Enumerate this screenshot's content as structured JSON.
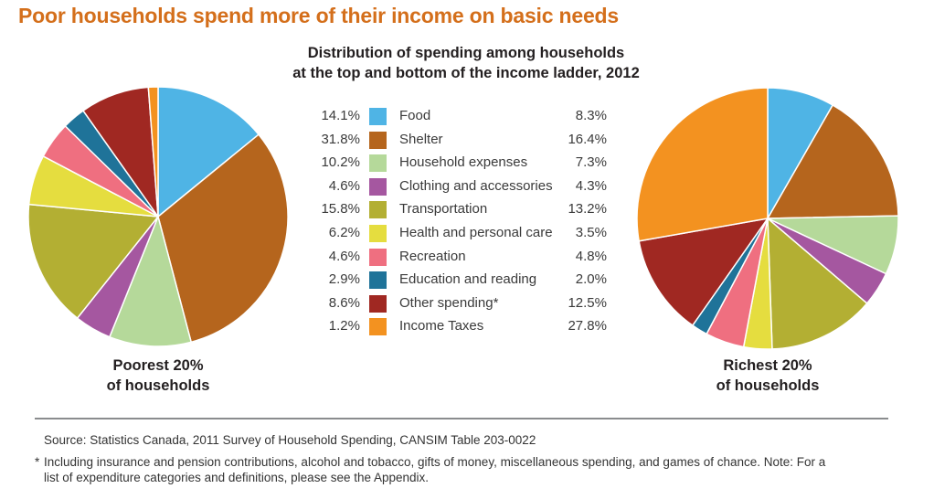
{
  "header": {
    "title": "Poor households spend more of their income on basic needs"
  },
  "chart_data": {
    "type": "pie",
    "title": "Distribution of spending among households",
    "subtitle": "at the top and bottom of the income ladder, 2012",
    "start_angle": "12 o'clock",
    "direction": "clockwise",
    "legend_placement": "center",
    "categories": [
      "Food",
      "Shelter",
      "Household expenses",
      "Clothing and accessories",
      "Transportation",
      "Health and personal care",
      "Recreation",
      "Education and reading",
      "Other spending*",
      "Income Taxes"
    ],
    "colors": [
      "#4FB4E5",
      "#B5651D",
      "#B5D99A",
      "#A557A0",
      "#B3AF33",
      "#E5DD3F",
      "#EF6F80",
      "#1F7399",
      "#A02822",
      "#F39220"
    ],
    "series": [
      {
        "name": "Poorest 20%",
        "label_line1": "Poorest 20%",
        "label_line2": "of households",
        "values": [
          14.1,
          31.8,
          10.2,
          4.6,
          15.8,
          6.2,
          4.6,
          2.9,
          8.6,
          1.2
        ],
        "display": [
          "14.1%",
          "31.8%",
          "10.2%",
          "4.6%",
          "15.8%",
          "6.2%",
          "4.6%",
          "2.9%",
          "8.6%",
          "1.2%"
        ]
      },
      {
        "name": "Richest 20%",
        "label_line1": "Richest 20%",
        "label_line2": "of households",
        "values": [
          8.3,
          16.4,
          7.3,
          4.3,
          13.2,
          3.5,
          4.8,
          2.0,
          12.5,
          27.8
        ],
        "display": [
          "8.3%",
          "16.4%",
          "7.3%",
          "4.3%",
          "13.2%",
          "3.5%",
          "4.8%",
          "2.0%",
          "12.5%",
          "27.8%"
        ]
      }
    ]
  },
  "footer": {
    "source": "Source: Statistics Canada, 2011 Survey of Household Spending, CANSIM Table 203-0022",
    "note_marker": "*",
    "note": "Including insurance and pension contributions, alcohol and tobacco, gifts of money, miscellaneous spending, and games of chance. Note: For a list of expenditure categories and definitions, please see the Appendix."
  }
}
